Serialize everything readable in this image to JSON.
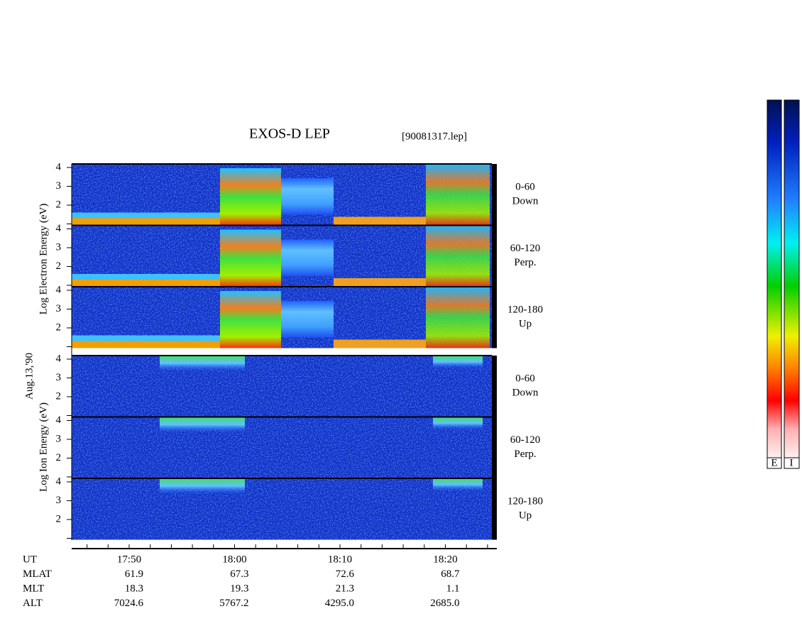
{
  "header": {
    "title": "EXOS-D LEP",
    "file": "[90081317.lep]"
  },
  "date_label": "Aug.13,'90",
  "electron": {
    "axis_label": "Log  Electron  Energy (eV)",
    "panels": [
      {
        "angle": "0-60",
        "direction": "Down"
      },
      {
        "angle": "60-120",
        "direction": "Perp."
      },
      {
        "angle": "120-180",
        "direction": "Up"
      }
    ]
  },
  "ion": {
    "axis_label": "Log  Ion  Energy (eV)",
    "panels": [
      {
        "angle": "0-60",
        "direction": "Down"
      },
      {
        "angle": "60-120",
        "direction": "Perp."
      },
      {
        "angle": "120-180",
        "direction": "Up"
      }
    ]
  },
  "energy_ticks": [
    "4",
    "3",
    "2"
  ],
  "time_axis": {
    "ticks": [
      "17:50",
      "18:00",
      "18:10",
      "18:20"
    ]
  },
  "table": {
    "rows": [
      {
        "label": "UT",
        "values": []
      },
      {
        "label": "MLAT",
        "values": [
          "61.9",
          "67.3",
          "72.6",
          "68.7"
        ]
      },
      {
        "label": "MLT",
        "values": [
          "18.3",
          "19.3",
          "21.3",
          "1.1"
        ]
      },
      {
        "label": "ALT",
        "values": [
          "7024.6",
          "5767.2",
          "4295.0",
          "2685.0"
        ]
      }
    ]
  },
  "colorbars": [
    "E",
    "I"
  ]
}
